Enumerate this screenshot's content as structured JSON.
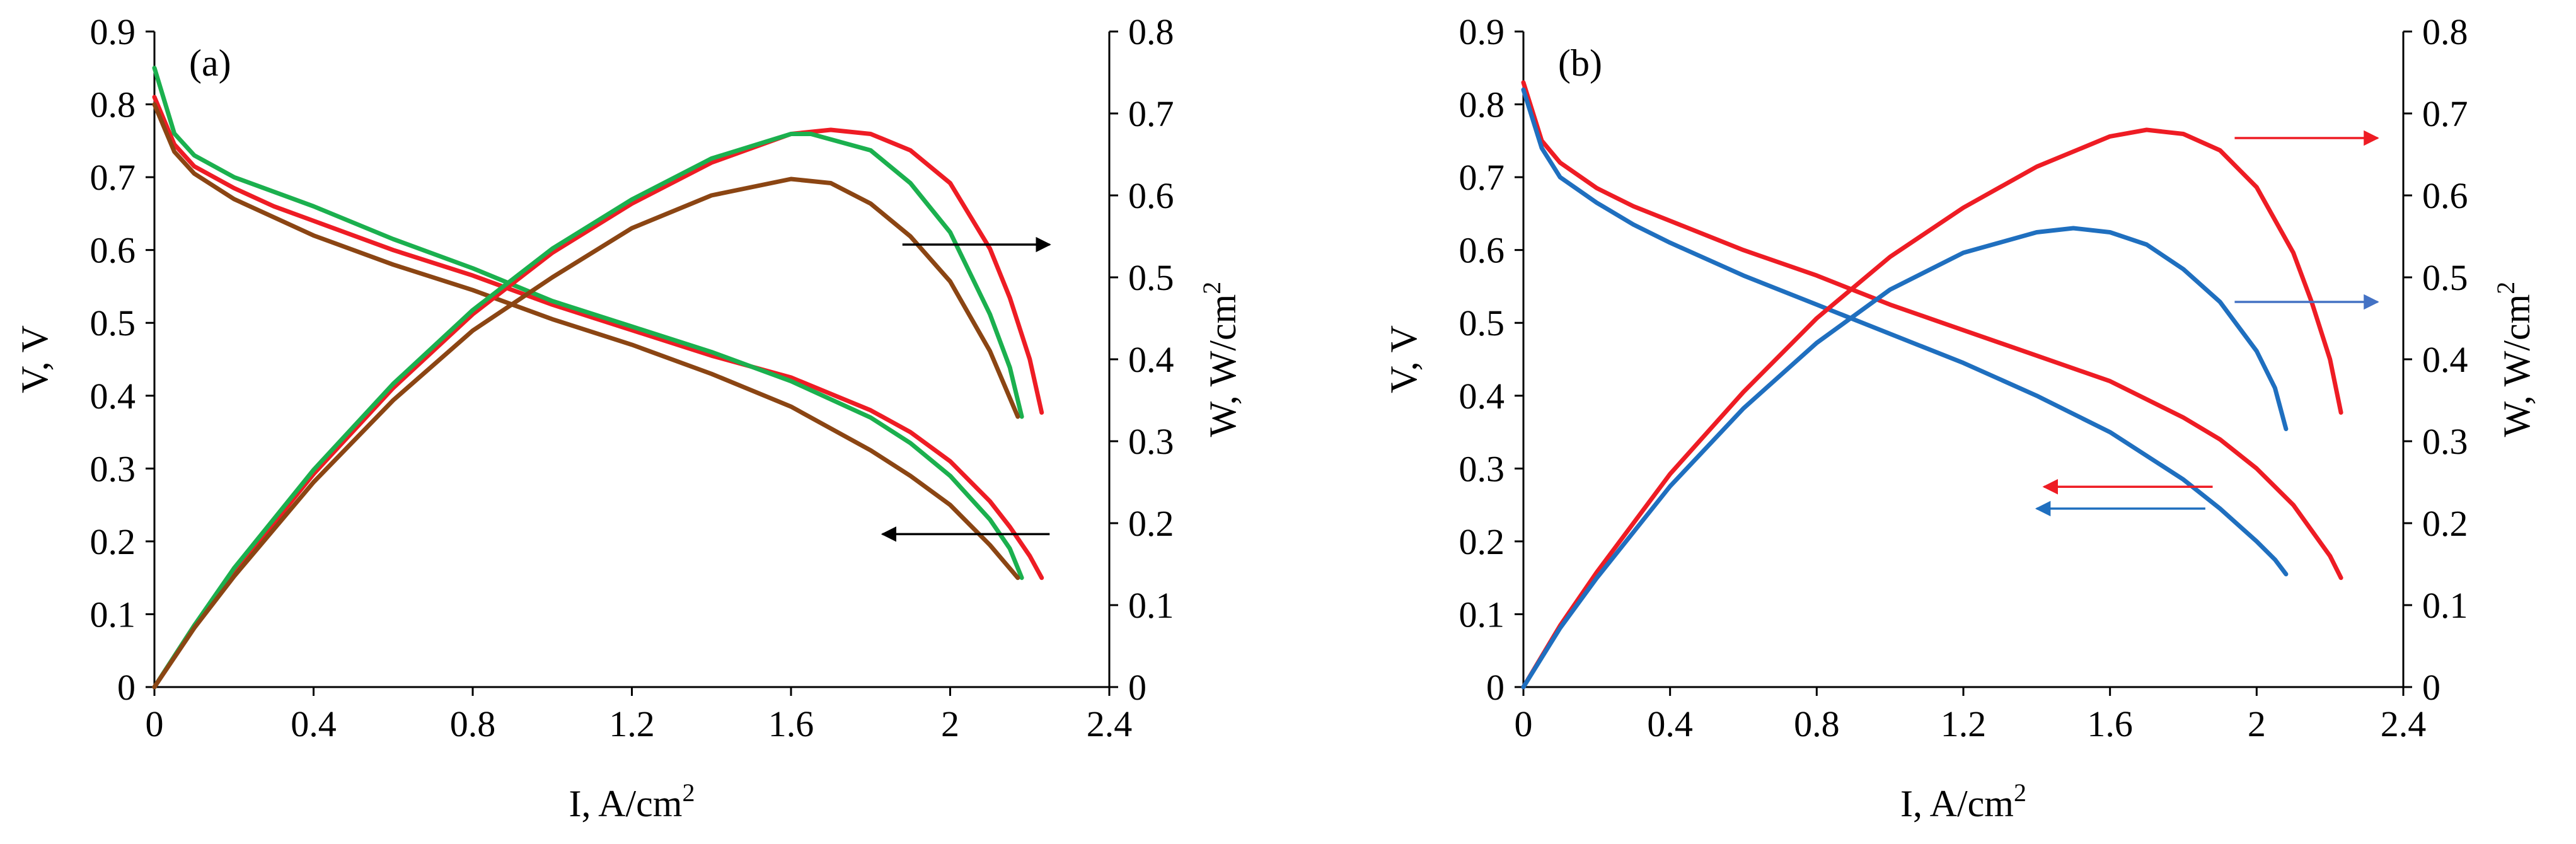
{
  "chart_data": [
    {
      "type": "line",
      "panel_label": "(a)",
      "xlabel": "I, A/cm",
      "xlabel_sup": "2",
      "ylabel": "V, V",
      "y2label": "W, W/cm",
      "y2label_sup": "2",
      "xlim": [
        0,
        2.4
      ],
      "ylim": [
        0,
        0.9
      ],
      "y2lim": [
        0,
        0.8
      ],
      "xticks": [
        {
          "value": 0,
          "label": "0"
        },
        {
          "value": 0.4,
          "label": "0.4"
        },
        {
          "value": 0.8,
          "label": "0.8"
        },
        {
          "value": 1.2,
          "label": "1.2"
        },
        {
          "value": 1.6,
          "label": "1.6"
        },
        {
          "value": 2.0,
          "label": "2"
        },
        {
          "value": 2.4,
          "label": "2.4"
        }
      ],
      "yticks": [
        {
          "value": 0,
          "label": "0"
        },
        {
          "value": 0.1,
          "label": "0.1"
        },
        {
          "value": 0.2,
          "label": "0.2"
        },
        {
          "value": 0.3,
          "label": "0.3"
        },
        {
          "value": 0.4,
          "label": "0.4"
        },
        {
          "value": 0.5,
          "label": "0.5"
        },
        {
          "value": 0.6,
          "label": "0.6"
        },
        {
          "value": 0.7,
          "label": "0.7"
        },
        {
          "value": 0.8,
          "label": "0.8"
        },
        {
          "value": 0.9,
          "label": "0.9"
        }
      ],
      "y2ticks": [
        {
          "value": 0,
          "label": "0"
        },
        {
          "value": 0.1,
          "label": "0.1"
        },
        {
          "value": 0.2,
          "label": "0.2"
        },
        {
          "value": 0.3,
          "label": "0.3"
        },
        {
          "value": 0.4,
          "label": "0.4"
        },
        {
          "value": 0.5,
          "label": "0.5"
        },
        {
          "value": 0.6,
          "label": "0.6"
        },
        {
          "value": 0.7,
          "label": "0.7"
        },
        {
          "value": 0.8,
          "label": "0.8"
        }
      ],
      "series": [
        {
          "name": "red voltage",
          "axis": "left",
          "color": "#ee1c24",
          "x": [
            0,
            0.05,
            0.1,
            0.2,
            0.3,
            0.4,
            0.6,
            0.8,
            1.0,
            1.2,
            1.4,
            1.6,
            1.8,
            1.9,
            2.0,
            2.1,
            2.15,
            2.2,
            2.23
          ],
          "y": [
            0.81,
            0.745,
            0.715,
            0.685,
            0.66,
            0.64,
            0.6,
            0.565,
            0.525,
            0.49,
            0.455,
            0.425,
            0.38,
            0.35,
            0.31,
            0.255,
            0.22,
            0.18,
            0.15
          ]
        },
        {
          "name": "green voltage",
          "axis": "left",
          "color": "#1bb04e",
          "x": [
            0,
            0.05,
            0.1,
            0.2,
            0.3,
            0.4,
            0.6,
            0.8,
            1.0,
            1.2,
            1.4,
            1.6,
            1.8,
            1.9,
            2.0,
            2.1,
            2.15,
            2.18
          ],
          "y": [
            0.85,
            0.76,
            0.73,
            0.7,
            0.68,
            0.66,
            0.615,
            0.575,
            0.53,
            0.495,
            0.46,
            0.42,
            0.37,
            0.335,
            0.29,
            0.23,
            0.19,
            0.15
          ]
        },
        {
          "name": "brown voltage",
          "axis": "left",
          "color": "#8b4513",
          "x": [
            0,
            0.05,
            0.1,
            0.2,
            0.3,
            0.4,
            0.6,
            0.8,
            1.0,
            1.2,
            1.4,
            1.6,
            1.8,
            1.9,
            2.0,
            2.1,
            2.17
          ],
          "y": [
            0.8,
            0.735,
            0.705,
            0.67,
            0.645,
            0.62,
            0.58,
            0.545,
            0.505,
            0.47,
            0.43,
            0.385,
            0.325,
            0.29,
            0.25,
            0.195,
            0.15
          ]
        },
        {
          "name": "red power",
          "axis": "right",
          "color": "#ee1c24",
          "x": [
            0,
            0.1,
            0.2,
            0.4,
            0.6,
            0.8,
            1.0,
            1.2,
            1.4,
            1.6,
            1.7,
            1.8,
            1.9,
            2.0,
            2.1,
            2.15,
            2.2,
            2.23
          ],
          "y": [
            0,
            0.075,
            0.14,
            0.26,
            0.365,
            0.455,
            0.53,
            0.59,
            0.64,
            0.675,
            0.68,
            0.675,
            0.655,
            0.615,
            0.535,
            0.475,
            0.4,
            0.335
          ]
        },
        {
          "name": "green power",
          "axis": "right",
          "color": "#1bb04e",
          "x": [
            0,
            0.1,
            0.2,
            0.4,
            0.6,
            0.8,
            1.0,
            1.2,
            1.4,
            1.6,
            1.65,
            1.8,
            1.9,
            2.0,
            2.1,
            2.15,
            2.18
          ],
          "y": [
            0,
            0.075,
            0.145,
            0.265,
            0.37,
            0.46,
            0.535,
            0.595,
            0.645,
            0.675,
            0.675,
            0.655,
            0.615,
            0.555,
            0.455,
            0.39,
            0.33
          ]
        },
        {
          "name": "brown power",
          "axis": "right",
          "color": "#8b4513",
          "x": [
            0,
            0.1,
            0.2,
            0.4,
            0.6,
            0.8,
            1.0,
            1.2,
            1.4,
            1.6,
            1.7,
            1.8,
            1.9,
            2.0,
            2.1,
            2.17
          ],
          "y": [
            0,
            0.072,
            0.135,
            0.25,
            0.35,
            0.435,
            0.5,
            0.56,
            0.6,
            0.62,
            0.615,
            0.59,
            0.55,
            0.495,
            0.41,
            0.33
          ]
        }
      ],
      "annotations": [
        {
          "name": "arrow-right",
          "color": "#000000",
          "x_from": 1.88,
          "x_to": 2.25,
          "axis": "right",
          "y": 0.54
        },
        {
          "name": "arrow-left",
          "color": "#000000",
          "x_from": 2.25,
          "x_to": 1.83,
          "axis": "left",
          "y": 0.21
        }
      ]
    },
    {
      "type": "line",
      "panel_label": "(b)",
      "xlabel": "I, A/cm",
      "xlabel_sup": "2",
      "ylabel": "V, V",
      "y2label": "W, W/cm",
      "y2label_sup": "2",
      "xlim": [
        0,
        2.4
      ],
      "ylim": [
        0,
        0.9
      ],
      "y2lim": [
        0,
        0.8
      ],
      "xticks": [
        {
          "value": 0,
          "label": "0"
        },
        {
          "value": 0.4,
          "label": "0.4"
        },
        {
          "value": 0.8,
          "label": "0.8"
        },
        {
          "value": 1.2,
          "label": "1.2"
        },
        {
          "value": 1.6,
          "label": "1.6"
        },
        {
          "value": 2.0,
          "label": "2"
        },
        {
          "value": 2.4,
          "label": "2.4"
        }
      ],
      "yticks": [
        {
          "value": 0,
          "label": "0"
        },
        {
          "value": 0.1,
          "label": "0.1"
        },
        {
          "value": 0.2,
          "label": "0.2"
        },
        {
          "value": 0.3,
          "label": "0.3"
        },
        {
          "value": 0.4,
          "label": "0.4"
        },
        {
          "value": 0.5,
          "label": "0.5"
        },
        {
          "value": 0.6,
          "label": "0.6"
        },
        {
          "value": 0.7,
          "label": "0.7"
        },
        {
          "value": 0.8,
          "label": "0.8"
        },
        {
          "value": 0.9,
          "label": "0.9"
        }
      ],
      "y2ticks": [
        {
          "value": 0,
          "label": "0"
        },
        {
          "value": 0.1,
          "label": "0.1"
        },
        {
          "value": 0.2,
          "label": "0.2"
        },
        {
          "value": 0.3,
          "label": "0.3"
        },
        {
          "value": 0.4,
          "label": "0.4"
        },
        {
          "value": 0.5,
          "label": "0.5"
        },
        {
          "value": 0.6,
          "label": "0.6"
        },
        {
          "value": 0.7,
          "label": "0.7"
        },
        {
          "value": 0.8,
          "label": "0.8"
        }
      ],
      "series": [
        {
          "name": "red voltage",
          "axis": "left",
          "color": "#ee1c24",
          "x": [
            0,
            0.05,
            0.1,
            0.2,
            0.3,
            0.4,
            0.6,
            0.8,
            1.0,
            1.2,
            1.4,
            1.6,
            1.8,
            1.9,
            2.0,
            2.1,
            2.15,
            2.2,
            2.23
          ],
          "y": [
            0.83,
            0.75,
            0.72,
            0.685,
            0.66,
            0.64,
            0.6,
            0.565,
            0.525,
            0.49,
            0.455,
            0.42,
            0.37,
            0.34,
            0.3,
            0.25,
            0.215,
            0.18,
            0.15
          ]
        },
        {
          "name": "blue voltage",
          "axis": "left",
          "color": "#1f6fbf",
          "x": [
            0,
            0.05,
            0.1,
            0.2,
            0.3,
            0.4,
            0.6,
            0.8,
            1.0,
            1.2,
            1.4,
            1.6,
            1.8,
            1.9,
            2.0,
            2.05,
            2.08
          ],
          "y": [
            0.82,
            0.74,
            0.7,
            0.665,
            0.635,
            0.61,
            0.565,
            0.525,
            0.485,
            0.445,
            0.4,
            0.35,
            0.285,
            0.245,
            0.2,
            0.175,
            0.155
          ]
        },
        {
          "name": "red power",
          "axis": "right",
          "color": "#ee1c24",
          "x": [
            0,
            0.1,
            0.2,
            0.4,
            0.6,
            0.8,
            1.0,
            1.2,
            1.4,
            1.6,
            1.7,
            1.8,
            1.9,
            2.0,
            2.1,
            2.15,
            2.2,
            2.23
          ],
          "y": [
            0,
            0.075,
            0.14,
            0.26,
            0.36,
            0.45,
            0.525,
            0.585,
            0.635,
            0.672,
            0.68,
            0.675,
            0.655,
            0.61,
            0.53,
            0.47,
            0.4,
            0.335
          ]
        },
        {
          "name": "blue power",
          "axis": "right",
          "color": "#1f6fbf",
          "x": [
            0,
            0.1,
            0.2,
            0.4,
            0.6,
            0.8,
            1.0,
            1.2,
            1.4,
            1.5,
            1.6,
            1.7,
            1.8,
            1.9,
            2.0,
            2.05,
            2.08
          ],
          "y": [
            0,
            0.072,
            0.133,
            0.245,
            0.34,
            0.42,
            0.485,
            0.53,
            0.555,
            0.56,
            0.555,
            0.54,
            0.51,
            0.47,
            0.41,
            0.365,
            0.315
          ]
        }
      ],
      "annotations": [
        {
          "name": "red-arrow-right",
          "color": "#ee1c24",
          "x_from": 1.94,
          "x_to": 2.33,
          "axis": "right",
          "y": 0.67
        },
        {
          "name": "blue-arrow-right",
          "color": "#4472c4",
          "x_from": 1.94,
          "x_to": 2.33,
          "axis": "right",
          "y": 0.47
        },
        {
          "name": "red-arrow-left",
          "color": "#ee1c24",
          "x_from": 1.88,
          "x_to": 1.42,
          "axis": "left",
          "y": 0.275
        },
        {
          "name": "blue-arrow-left",
          "color": "#1f6fbf",
          "x_from": 1.86,
          "x_to": 1.4,
          "axis": "left",
          "y": 0.245
        }
      ]
    }
  ]
}
